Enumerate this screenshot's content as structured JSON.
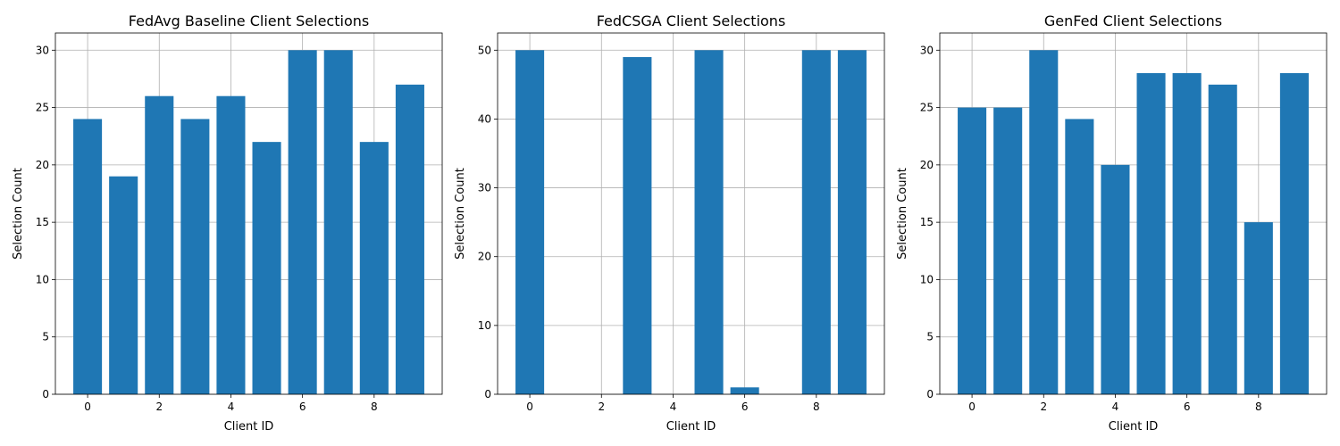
{
  "chart_data": [
    {
      "type": "bar",
      "title": "FedAvg Baseline Client Selections",
      "xlabel": "Client ID",
      "ylabel": "Selection Count",
      "categories": [
        0,
        1,
        2,
        3,
        4,
        5,
        6,
        7,
        8,
        9
      ],
      "values": [
        24,
        19,
        26,
        24,
        26,
        22,
        30,
        30,
        22,
        27
      ],
      "xlim": [
        -0.9,
        9.9
      ],
      "ylim": [
        0,
        31.5
      ],
      "xticks": [
        0,
        2,
        4,
        6,
        8
      ],
      "yticks": [
        0,
        5,
        10,
        15,
        20,
        25,
        30
      ],
      "grid": true,
      "color": "#1f77b4"
    },
    {
      "type": "bar",
      "title": "FedCSGA Client Selections",
      "xlabel": "Client ID",
      "ylabel": "Selection Count",
      "categories": [
        0,
        1,
        2,
        3,
        4,
        5,
        6,
        7,
        8,
        9
      ],
      "values": [
        50,
        0,
        0,
        49,
        0,
        50,
        1,
        0,
        50,
        50
      ],
      "xlim": [
        -0.9,
        9.9
      ],
      "ylim": [
        0,
        52.5
      ],
      "xticks": [
        0,
        2,
        4,
        6,
        8
      ],
      "yticks": [
        0,
        10,
        20,
        30,
        40,
        50
      ],
      "grid": true,
      "color": "#1f77b4"
    },
    {
      "type": "bar",
      "title": "GenFed Client Selections",
      "xlabel": "Client ID",
      "ylabel": "Selection Count",
      "categories": [
        0,
        1,
        2,
        3,
        4,
        5,
        6,
        7,
        8,
        9
      ],
      "values": [
        25,
        25,
        30,
        24,
        20,
        28,
        28,
        27,
        15,
        28
      ],
      "xlim": [
        -0.9,
        9.9
      ],
      "ylim": [
        0,
        31.5
      ],
      "xticks": [
        0,
        2,
        4,
        6,
        8
      ],
      "yticks": [
        0,
        5,
        10,
        15,
        20,
        25,
        30
      ],
      "grid": true,
      "color": "#1f77b4"
    }
  ]
}
